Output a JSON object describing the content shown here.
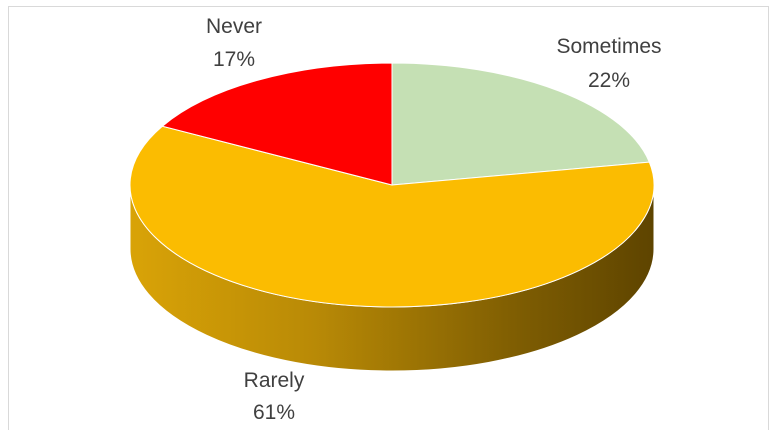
{
  "chart_data": {
    "type": "pie",
    "title": "",
    "style": "3d",
    "slices": [
      {
        "label": "Sometimes",
        "value": 22,
        "value_label": "22%",
        "color": "#c5e0b4"
      },
      {
        "label": "Rarely",
        "value": 61,
        "value_label": "61%",
        "color": "#fbbc01"
      },
      {
        "label": "Never",
        "value": 17,
        "value_label": "17%",
        "color": "#ff0000"
      }
    ],
    "legend": "none"
  }
}
